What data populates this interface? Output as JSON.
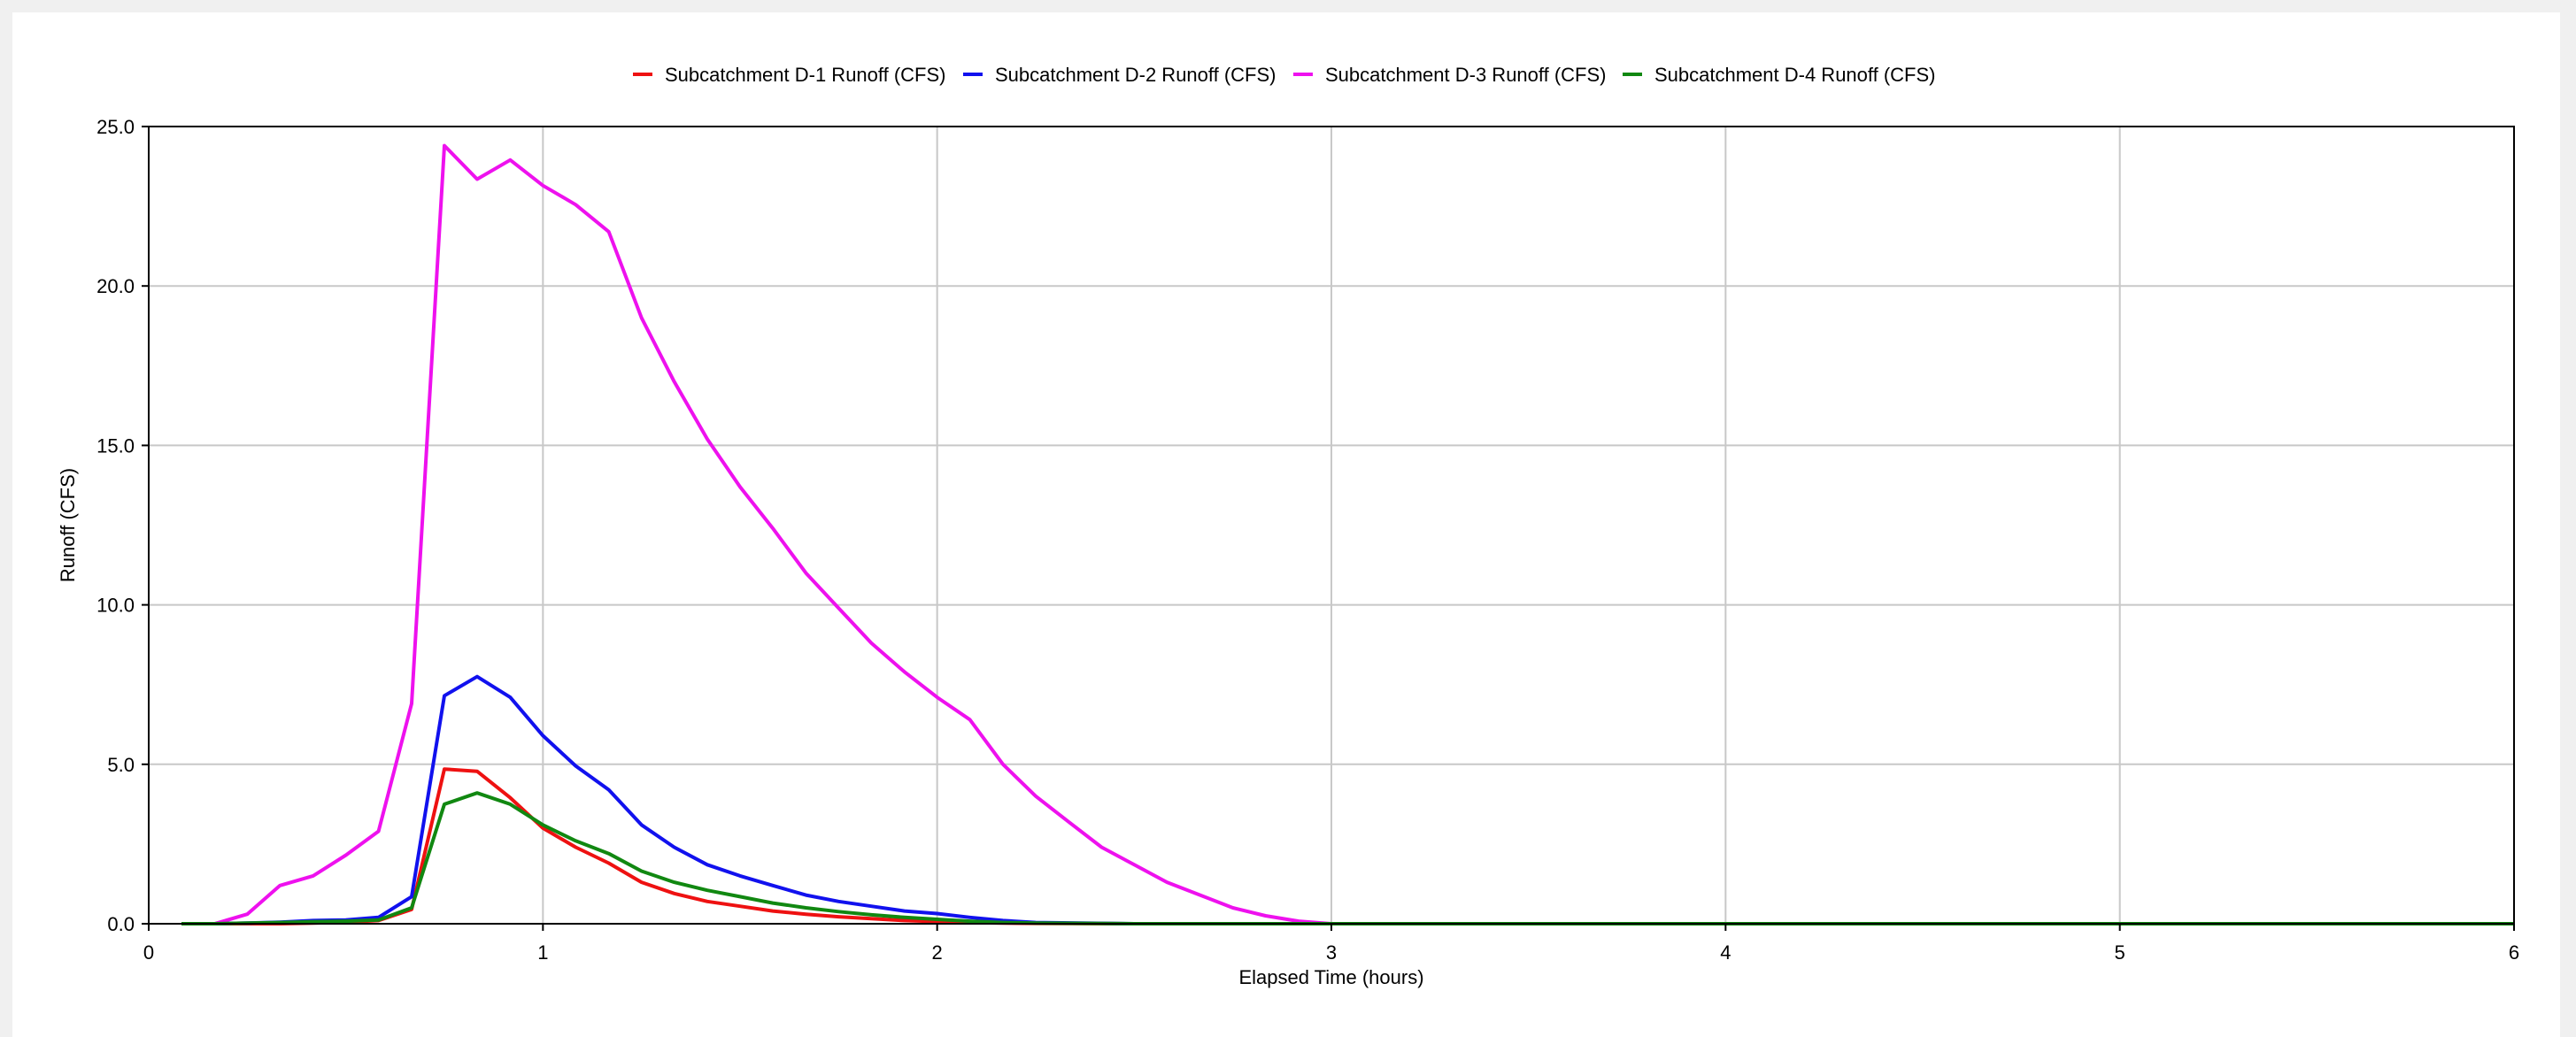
{
  "chart_data": {
    "type": "line",
    "xlabel": "Elapsed Time (hours)",
    "ylabel": "Runoff (CFS)",
    "xlim": [
      0,
      6
    ],
    "ylim": [
      0,
      25
    ],
    "x_ticks": [
      "0",
      "1",
      "2",
      "3",
      "4",
      "5",
      "6"
    ],
    "y_ticks": [
      "0.0",
      "5.0",
      "10.0",
      "15.0",
      "20.0",
      "25.0"
    ],
    "grid": true,
    "legend_position": "top",
    "series": [
      {
        "name": "Subcatchment D-1 Runoff (CFS)",
        "color": "#ee1111",
        "x": [
          0.083,
          0.167,
          0.25,
          0.333,
          0.417,
          0.5,
          0.583,
          0.667,
          0.75,
          0.833,
          0.917,
          1.0,
          1.083,
          1.167,
          1.25,
          1.333,
          1.417,
          1.5,
          1.583,
          1.667,
          1.75,
          1.833,
          1.917,
          2.0,
          2.083,
          2.167,
          2.25,
          2.5,
          3.0,
          4.0,
          5.0,
          6.0
        ],
        "y": [
          0,
          0,
          0,
          0,
          0.02,
          0.05,
          0.1,
          0.45,
          4.85,
          4.78,
          3.95,
          3.0,
          2.4,
          1.9,
          1.3,
          0.95,
          0.7,
          0.55,
          0.4,
          0.3,
          0.22,
          0.16,
          0.1,
          0.07,
          0.04,
          0.02,
          0.01,
          0,
          0,
          0,
          0,
          0
        ]
      },
      {
        "name": "Subcatchment D-2 Runoff (CFS)",
        "color": "#1111ee",
        "x": [
          0.083,
          0.167,
          0.25,
          0.333,
          0.417,
          0.5,
          0.583,
          0.667,
          0.75,
          0.833,
          0.917,
          1.0,
          1.083,
          1.167,
          1.25,
          1.333,
          1.417,
          1.5,
          1.583,
          1.667,
          1.75,
          1.833,
          1.917,
          2.0,
          2.083,
          2.167,
          2.25,
          2.5,
          3.0,
          4.0,
          5.0,
          6.0
        ],
        "y": [
          0,
          0,
          0.02,
          0.05,
          0.1,
          0.12,
          0.2,
          0.85,
          7.15,
          7.75,
          7.1,
          5.9,
          4.95,
          4.2,
          3.1,
          2.4,
          1.85,
          1.5,
          1.2,
          0.9,
          0.7,
          0.55,
          0.4,
          0.32,
          0.2,
          0.1,
          0.04,
          0,
          0,
          0,
          0,
          0
        ]
      },
      {
        "name": "Subcatchment D-3 Runoff (CFS)",
        "color": "#ee11ee",
        "x": [
          0.083,
          0.167,
          0.25,
          0.333,
          0.417,
          0.5,
          0.583,
          0.667,
          0.75,
          0.833,
          0.917,
          1.0,
          1.083,
          1.167,
          1.25,
          1.333,
          1.417,
          1.5,
          1.583,
          1.667,
          1.75,
          1.833,
          1.917,
          2.0,
          2.083,
          2.167,
          2.25,
          2.333,
          2.417,
          2.5,
          2.583,
          2.667,
          2.75,
          2.833,
          2.917,
          3.0,
          4.0,
          5.0,
          6.0
        ],
        "y": [
          0,
          0,
          0.3,
          1.2,
          1.5,
          2.15,
          2.9,
          6.9,
          24.4,
          23.35,
          23.95,
          23.15,
          22.55,
          21.7,
          19.0,
          17.0,
          15.2,
          13.7,
          12.4,
          11.0,
          9.9,
          8.8,
          7.9,
          7.1,
          6.4,
          5.0,
          4.0,
          3.2,
          2.4,
          1.85,
          1.3,
          0.9,
          0.5,
          0.25,
          0.08,
          0,
          0,
          0,
          0
        ]
      },
      {
        "name": "Subcatchment D-4 Runoff (CFS)",
        "color": "#118811",
        "x": [
          0.083,
          0.167,
          0.25,
          0.333,
          0.417,
          0.5,
          0.583,
          0.667,
          0.75,
          0.833,
          0.917,
          1.0,
          1.083,
          1.167,
          1.25,
          1.333,
          1.417,
          1.5,
          1.583,
          1.667,
          1.75,
          1.833,
          1.917,
          2.0,
          2.083,
          2.167,
          2.25,
          2.5,
          3.0,
          4.0,
          5.0,
          6.0
        ],
        "y": [
          0,
          0,
          0.02,
          0.04,
          0.06,
          0.08,
          0.12,
          0.5,
          3.75,
          4.1,
          3.75,
          3.1,
          2.6,
          2.2,
          1.65,
          1.3,
          1.05,
          0.85,
          0.65,
          0.5,
          0.38,
          0.28,
          0.2,
          0.14,
          0.08,
          0.04,
          0.02,
          0,
          0,
          0,
          0,
          0
        ]
      }
    ]
  }
}
